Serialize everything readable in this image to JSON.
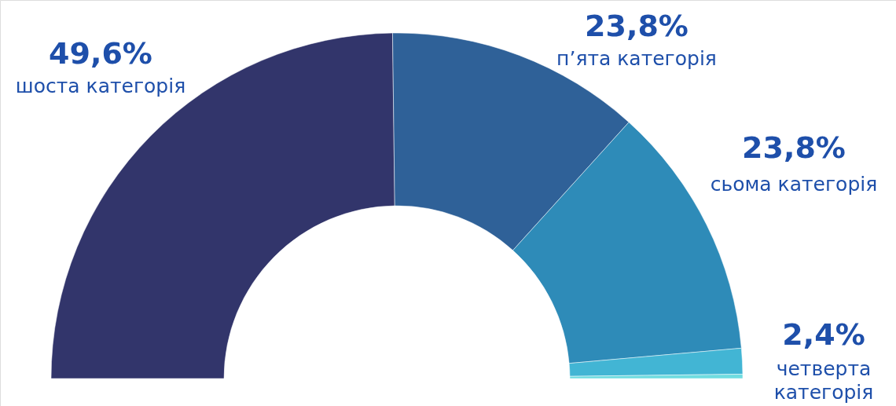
{
  "chart_data": {
    "type": "donut",
    "categories": [
      "шоста категорія",
      "п’ята категорія",
      "сьома категорія",
      "четверта категорія",
      null
    ],
    "values": [
      49.6,
      23.8,
      23.8,
      2.4,
      0.4
    ],
    "value_labels": [
      "49,6%",
      "23,8%",
      "23,8%",
      "2,4%",
      null
    ],
    "colors": [
      "#32356b",
      "#2f6198",
      "#2e8bb8",
      "#42b5d4",
      "#6fdce0"
    ]
  }
}
